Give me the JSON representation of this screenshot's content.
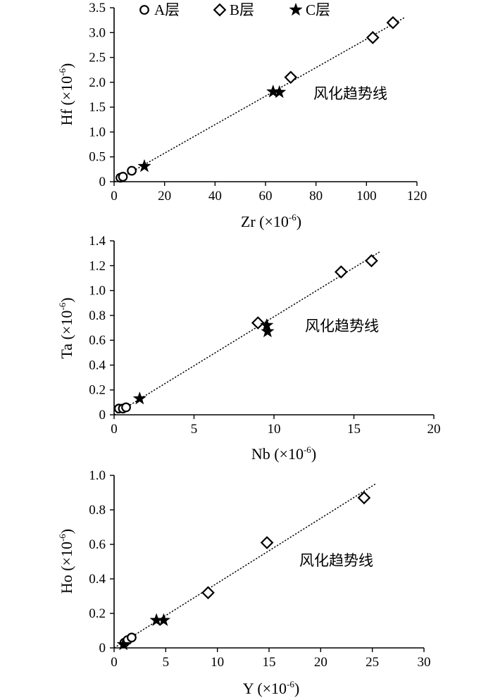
{
  "legend": [
    {
      "marker": "circle",
      "label": "A层"
    },
    {
      "marker": "diamond",
      "label": "B层"
    },
    {
      "marker": "star",
      "label": "C层"
    }
  ],
  "chart_data": [
    {
      "type": "scatter",
      "xlabel": "Zr (×10⁻⁶)",
      "ylabel": "Hf (×10⁻⁶)",
      "x_title": {
        "main": "Zr (×10",
        "sup": "-6",
        "close": ")"
      },
      "y_title": {
        "main": "Hf (×10",
        "sup": "-6",
        "close": ")"
      },
      "xlim": [
        0,
        120
      ],
      "ylim": [
        0,
        3.5
      ],
      "xticks": [
        "0",
        "20",
        "40",
        "60",
        "80",
        "100",
        "120"
      ],
      "yticks": [
        "0",
        "0.5",
        "1.0",
        "1.5",
        "2.0",
        "2.5",
        "3.0",
        "3.5"
      ],
      "grid": false,
      "annotation": "风化趋势线",
      "trendline": {
        "x": [
          0,
          115
        ],
        "y": [
          0,
          3.3
        ]
      },
      "series": [
        {
          "name": "A层",
          "marker": "circle",
          "points": [
            [
              2.5,
              0.08
            ],
            [
              3.5,
              0.1
            ],
            [
              7,
              0.22
            ]
          ]
        },
        {
          "name": "B层",
          "marker": "diamond",
          "points": [
            [
              70,
              2.1
            ],
            [
              102.5,
              2.9
            ],
            [
              110.5,
              3.2
            ]
          ]
        },
        {
          "name": "C层",
          "marker": "star",
          "points": [
            [
              12,
              0.31
            ],
            [
              63,
              1.81
            ],
            [
              65.5,
              1.8
            ]
          ]
        }
      ]
    },
    {
      "type": "scatter",
      "xlabel": "Nb (×10⁻⁶)",
      "ylabel": "Ta (×10⁻⁶)",
      "x_title": {
        "main": "Nb (×10",
        "sup": "-6",
        "close": ")"
      },
      "y_title": {
        "main": "Ta (×10",
        "sup": "-6",
        "close": ")"
      },
      "xlim": [
        0,
        20
      ],
      "ylim": [
        0,
        1.4
      ],
      "xticks": [
        "0",
        "5",
        "10",
        "15",
        "20"
      ],
      "yticks": [
        "0",
        "0.2",
        "0.4",
        "0.6",
        "0.8",
        "1.0",
        "1.2",
        "1.4"
      ],
      "grid": false,
      "annotation": "风化趋势线",
      "trendline": {
        "x": [
          0,
          16.6
        ],
        "y": [
          0,
          1.31
        ]
      },
      "series": [
        {
          "name": "A层",
          "marker": "circle",
          "points": [
            [
              0.3,
              0.05
            ],
            [
              0.55,
              0.05
            ],
            [
              0.75,
              0.06
            ]
          ]
        },
        {
          "name": "B层",
          "marker": "diamond",
          "points": [
            [
              9,
              0.74
            ],
            [
              14.2,
              1.15
            ],
            [
              16.1,
              1.24
            ]
          ]
        },
        {
          "name": "C层",
          "marker": "star",
          "points": [
            [
              1.6,
              0.13
            ],
            [
              9.55,
              0.72
            ],
            [
              9.6,
              0.67
            ]
          ]
        }
      ]
    },
    {
      "type": "scatter",
      "xlabel": "Y (×10⁻⁶)",
      "ylabel": "Ho (×10⁻⁶)",
      "x_title": {
        "main": "Y (×10",
        "sup": "-6",
        "close": ")"
      },
      "y_title": {
        "main": "Ho (×10",
        "sup": "-6",
        "close": ")"
      },
      "xlim": [
        0,
        30
      ],
      "ylim": [
        0,
        1.0
      ],
      "xticks": [
        "0",
        "5",
        "10",
        "15",
        "20",
        "25",
        "30"
      ],
      "yticks": [
        "0",
        "0.2",
        "0.4",
        "0.6",
        "0.8",
        "1.0"
      ],
      "grid": false,
      "annotation": "风化趋势线",
      "trendline": {
        "x": [
          0,
          25.3
        ],
        "y": [
          0,
          0.95
        ]
      },
      "series": [
        {
          "name": "A层",
          "marker": "circle",
          "points": [
            [
              1.0,
              0.03
            ],
            [
              1.3,
              0.045
            ],
            [
              1.7,
              0.06
            ]
          ]
        },
        {
          "name": "B层",
          "marker": "diamond",
          "points": [
            [
              9.1,
              0.32
            ],
            [
              14.8,
              0.61
            ],
            [
              24.2,
              0.87
            ]
          ]
        },
        {
          "name": "C层",
          "marker": "star",
          "points": [
            [
              0.9,
              0.02
            ],
            [
              4.1,
              0.16
            ],
            [
              4.8,
              0.16
            ]
          ]
        }
      ]
    }
  ]
}
